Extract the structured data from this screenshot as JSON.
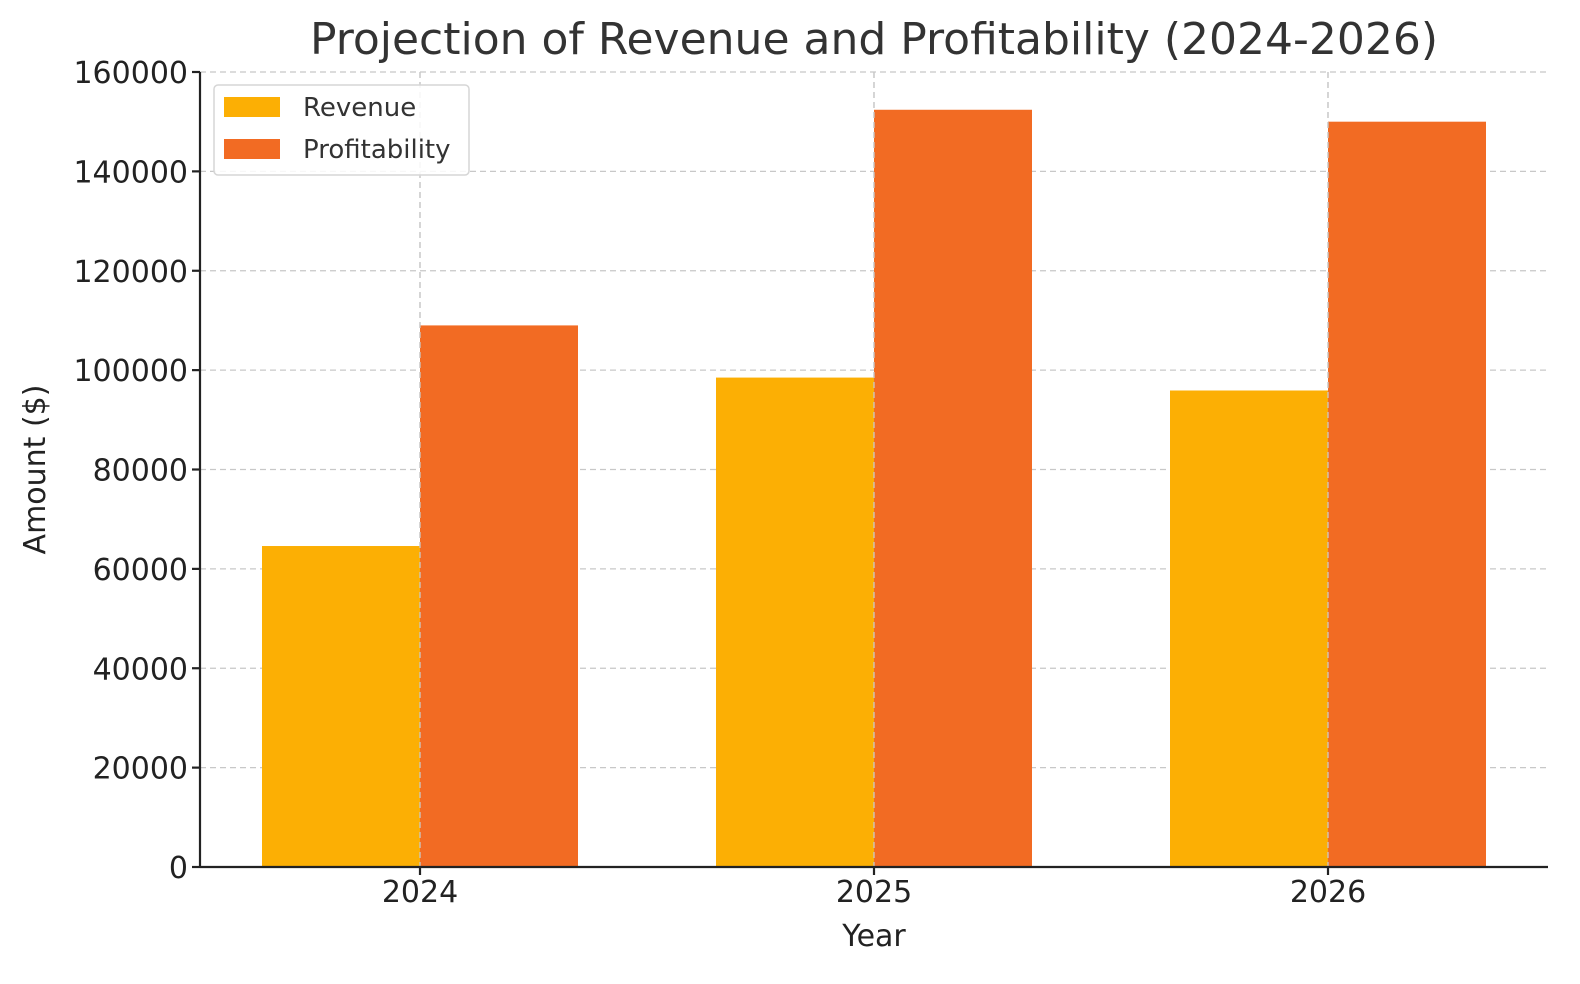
{
  "chart_data": {
    "type": "bar",
    "title": "Projection of Revenue and Profitability (2024-2026)",
    "xlabel": "Year",
    "ylabel": "Amount ($)",
    "categories": [
      "2024",
      "2025",
      "2026"
    ],
    "series": [
      {
        "name": "Revenue",
        "color": "#FCAF04",
        "values": [
          64600,
          98500,
          95900
        ]
      },
      {
        "name": "Profitability",
        "color": "#F26B23",
        "values": [
          109000,
          152400,
          150000
        ]
      }
    ],
    "ylim": [
      0,
      160000
    ],
    "yticks": [
      0,
      20000,
      40000,
      60000,
      80000,
      100000,
      120000,
      140000,
      160000
    ],
    "grid": true,
    "legend_position": "top-left"
  }
}
